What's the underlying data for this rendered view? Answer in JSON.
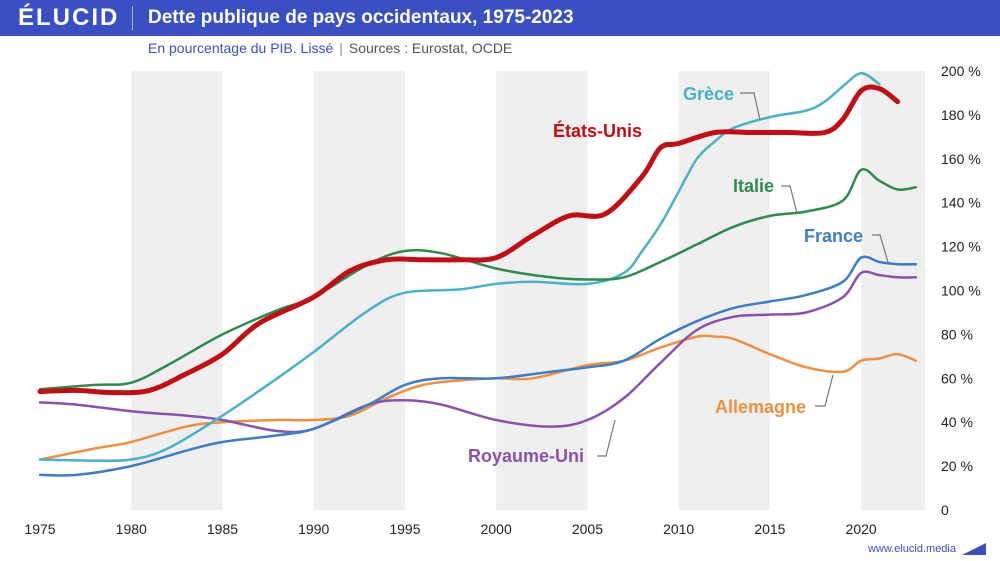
{
  "header": {
    "logo": "ÉLUCID",
    "title": "Dette publique de pays occidentaux, 1975-2023"
  },
  "subtitle": {
    "main": "En pourcentage du PIB. Lissé",
    "separator": "|",
    "sources": "Sources : Eurostat, OCDE"
  },
  "footer": {
    "url": "www.elucid.media"
  },
  "colors": {
    "brand": "#3b4fc4",
    "band_light": "#ffffff",
    "band_dark": "#efefef"
  },
  "chart_data": {
    "type": "line",
    "title": "Dette publique de pays occidentaux, 1975-2023",
    "xlabel": "",
    "ylabel": "",
    "xlim": [
      1975,
      2023.5
    ],
    "ylim": [
      0,
      200
    ],
    "x_ticks": [
      1975,
      1980,
      1985,
      1990,
      1995,
      2000,
      2005,
      2010,
      2015,
      2020
    ],
    "y_ticks": [
      0,
      20,
      40,
      60,
      80,
      100,
      120,
      140,
      160,
      180,
      200
    ],
    "y_tick_labels": [
      "0",
      "20 %",
      "40 %",
      "60 %",
      "80 %",
      "100 %",
      "120 %",
      "140 %",
      "160 %",
      "180 %",
      "200 %"
    ],
    "grid": "alternating vertical bands",
    "legend": "inline labels",
    "series": [
      {
        "name": "Grèce",
        "color": "#47b3c9",
        "width": 2.5,
        "x": [
          1975,
          1978,
          1980,
          1982,
          1985,
          1988,
          1990,
          1993,
          1995,
          1998,
          2000,
          2002,
          2005,
          2007,
          2008,
          2009,
          2010,
          2011,
          2012,
          2013,
          2015,
          2017,
          2018,
          2019,
          2020,
          2021
        ],
        "y": [
          23,
          22.5,
          23,
          28,
          43,
          60,
          72,
          91,
          99,
          100.5,
          103,
          104,
          103,
          108,
          118,
          130,
          145,
          160,
          168,
          174,
          179,
          182,
          186,
          193,
          199,
          194
        ]
      },
      {
        "name": "États-Unis",
        "color": "#c40d12",
        "width": 5,
        "x": [
          1975,
          1977,
          1979,
          1981,
          1983,
          1985,
          1987,
          1990,
          1992,
          1994,
          1996,
          1998,
          2000,
          2002,
          2004,
          2006,
          2008,
          2009,
          2010,
          2012,
          2014,
          2016,
          2018,
          2019,
          2020,
          2021,
          2022
        ],
        "y": [
          54,
          54.5,
          53.5,
          54.5,
          62,
          71,
          85,
          97,
          109,
          114,
          114,
          114,
          115,
          125,
          134,
          135,
          152,
          165,
          167,
          172,
          172,
          172,
          172,
          178,
          191,
          192,
          186
        ]
      },
      {
        "name": "Italie",
        "color": "#2e8b4f",
        "width": 2.5,
        "x": [
          1975,
          1978,
          1980,
          1982,
          1985,
          1988,
          1990,
          1993,
          1995,
          1997,
          2000,
          2003,
          2005,
          2007,
          2009,
          2011,
          2013,
          2015,
          2017,
          2019,
          2020,
          2021,
          2022,
          2023
        ],
        "y": [
          55,
          57,
          58,
          66,
          80,
          91,
          97,
          112,
          118,
          117,
          110,
          106,
          105,
          106,
          113,
          121,
          129,
          134,
          136,
          141,
          155,
          150,
          146,
          147
        ]
      },
      {
        "name": "France",
        "color": "#3c7dc7",
        "width": 2.5,
        "x": [
          1975,
          1977,
          1980,
          1983,
          1985,
          1988,
          1990,
          1993,
          1995,
          1997,
          2000,
          2003,
          2005,
          2007,
          2009,
          2011,
          2013,
          2015,
          2017,
          2019,
          2020,
          2021,
          2022,
          2023
        ],
        "y": [
          16,
          16,
          20,
          27,
          31,
          34,
          37,
          48,
          57,
          60,
          60,
          63,
          65,
          68,
          78,
          86,
          92,
          95,
          98,
          104,
          115,
          113,
          112,
          112
        ]
      },
      {
        "name": "Royaume-Uni",
        "color": "#8a52ad",
        "width": 2.5,
        "x": [
          1975,
          1977,
          1980,
          1983,
          1985,
          1988,
          1990,
          1993,
          1995,
          1997,
          2000,
          2003,
          2005,
          2007,
          2009,
          2011,
          2013,
          2015,
          2017,
          2019,
          2020,
          2021,
          2022,
          2023
        ],
        "y": [
          49,
          48,
          45,
          43,
          41,
          36,
          37,
          48,
          50,
          48,
          41,
          38,
          41,
          51,
          67,
          82,
          88,
          89,
          90,
          97,
          108,
          107,
          106,
          106
        ]
      },
      {
        "name": "Allemagne",
        "color": "#ef9040",
        "width": 2.5,
        "x": [
          1975,
          1978,
          1980,
          1983,
          1985,
          1988,
          1990,
          1992,
          1994,
          1996,
          1998,
          2000,
          2002,
          2005,
          2007,
          2009,
          2011,
          2012,
          2013,
          2015,
          2017,
          2019,
          2020,
          2021,
          2022,
          2023
        ],
        "y": [
          23,
          28,
          31,
          38,
          40,
          41,
          41,
          43,
          51,
          57,
          59,
          60,
          60,
          66,
          68,
          74,
          79,
          79,
          78,
          71,
          65,
          63,
          68,
          69,
          71,
          68
        ]
      }
    ],
    "labels": [
      {
        "series": "Grèce",
        "text": "Grèce"
      },
      {
        "series": "États-Unis",
        "text": "États-Unis"
      },
      {
        "series": "Italie",
        "text": "Italie"
      },
      {
        "series": "France",
        "text": "France"
      },
      {
        "series": "Royaume-Uni",
        "text": "Royaume-Uni"
      },
      {
        "series": "Allemagne",
        "text": "Allemagne"
      }
    ]
  }
}
